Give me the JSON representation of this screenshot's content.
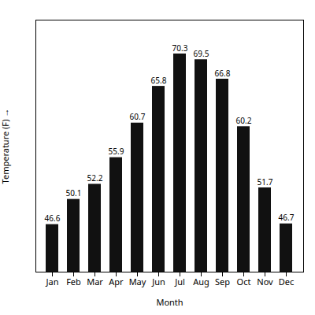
{
  "chart_data": {
    "type": "bar",
    "categories": [
      "Jan",
      "Feb",
      "Mar",
      "Apr",
      "May",
      "Jun",
      "Jul",
      "Aug",
      "Sep",
      "Oct",
      "Nov",
      "Dec"
    ],
    "values": [
      46.6,
      50.1,
      52.2,
      55.9,
      60.7,
      65.8,
      70.3,
      69.5,
      66.8,
      60.2,
      51.7,
      46.7
    ],
    "color": "#111111",
    "xlabel": "Month",
    "ylabel": "Temperature (F)",
    "ylim": [
      40,
      75
    ],
    "tick_labels": "x",
    "data_labels": true,
    "grid": false
  }
}
